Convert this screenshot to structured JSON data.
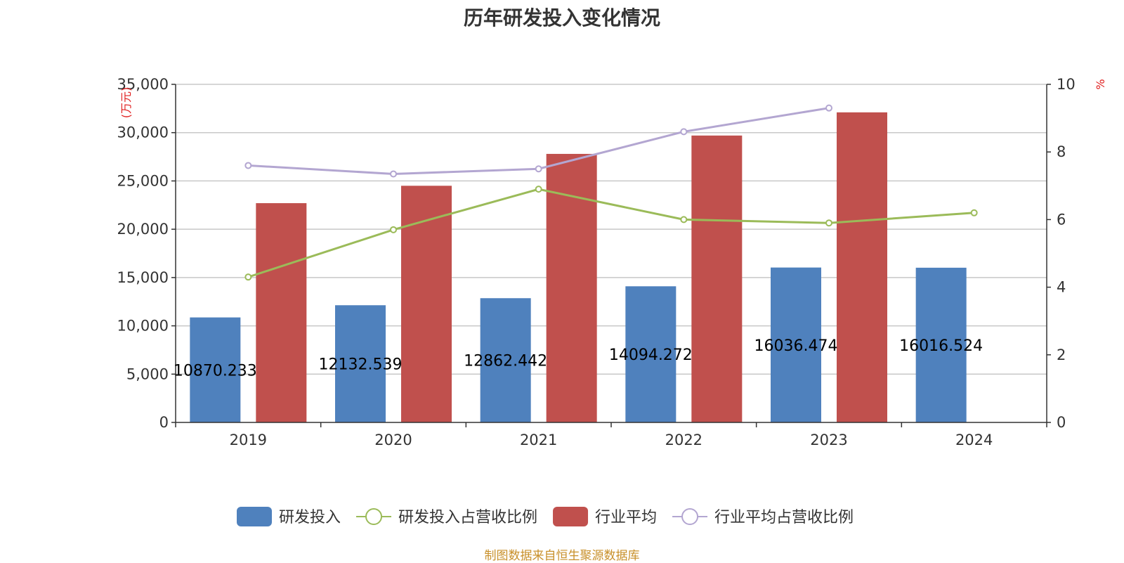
{
  "chart_data": {
    "type": "bar",
    "title": "历年研发投入变化情况",
    "categories": [
      "2019",
      "2020",
      "2021",
      "2022",
      "2023",
      "2024"
    ],
    "y_left": {
      "unit": "万元",
      "min": 0,
      "max": 35000,
      "ticks": [
        0,
        5000,
        10000,
        15000,
        20000,
        25000,
        30000,
        35000
      ],
      "tick_labels": [
        "0",
        "5,000",
        "10,000",
        "15,000",
        "20,000",
        "25,000",
        "30,000",
        "35,000"
      ]
    },
    "y_right": {
      "unit": "%",
      "min": 0,
      "max": 10,
      "ticks": [
        0,
        2,
        4,
        6,
        8,
        10
      ],
      "tick_labels": [
        "0",
        "2",
        "4",
        "6",
        "8",
        "10"
      ]
    },
    "series": [
      {
        "name": "研发投入",
        "type": "bar",
        "axis": "left",
        "color": "#4f81bd",
        "values": [
          10870.233,
          12132.539,
          12862.442,
          14094.272,
          16036.474,
          16016.524
        ],
        "labels": [
          "10870.233",
          "12132.539",
          "12862.442",
          "14094.272",
          "16036.474",
          "16016.524"
        ]
      },
      {
        "name": "研发投入占营收比例",
        "type": "line",
        "axis": "right",
        "color": "#9bbb59",
        "values": [
          4.3,
          5.7,
          6.9,
          6.0,
          5.9,
          6.2
        ]
      },
      {
        "name": "行业平均",
        "type": "bar",
        "axis": "left",
        "color": "#c0504d",
        "values": [
          22700,
          24500,
          27800,
          29700,
          32100,
          null
        ]
      },
      {
        "name": "行业平均占营收比例",
        "type": "line",
        "axis": "right",
        "color": "#b3a6d1",
        "values": [
          7.6,
          7.35,
          7.5,
          8.6,
          9.3,
          null
        ]
      }
    ],
    "grid": true,
    "legend_position": "bottom"
  },
  "source_note": "制图数据来自恒生聚源数据库"
}
